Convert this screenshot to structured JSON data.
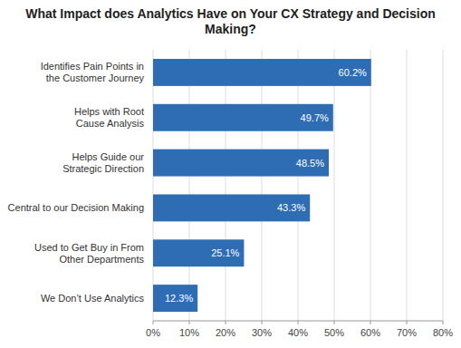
{
  "chart_data": {
    "type": "bar",
    "orientation": "horizontal",
    "title": "What Impact does Analytics Have on Your CX Strategy and Decision Making?",
    "categories": [
      "We Don’t Use Analytics",
      "Used to Get Buy in From\nOther Departments",
      "Central to our Decision Making",
      "Helps Guide our\nStrategic Direction",
      "Helps with Root\nCause Analysis",
      "Identifies Pain Points in\nthe Customer Journey"
    ],
    "values": [
      12.3,
      25.1,
      43.3,
      48.5,
      49.7,
      60.2
    ],
    "value_labels": [
      "12.3%",
      "25.1%",
      "43.3%",
      "48.5%",
      "49.7%",
      "60.2%"
    ],
    "data_labels": true,
    "color": "#2E6DB4",
    "xlim": [
      0,
      80
    ],
    "xticks": [
      {
        "value": 0,
        "label": "0%"
      },
      {
        "value": 10,
        "label": "10%"
      },
      {
        "value": 20,
        "label": "20%"
      },
      {
        "value": 30,
        "label": "30%"
      },
      {
        "value": 40,
        "label": "40%"
      },
      {
        "value": 50,
        "label": "50%"
      },
      {
        "value": 60,
        "label": "60%"
      },
      {
        "value": 70,
        "label": "70%"
      },
      {
        "value": 80,
        "label": "80%"
      }
    ],
    "grid": true
  }
}
